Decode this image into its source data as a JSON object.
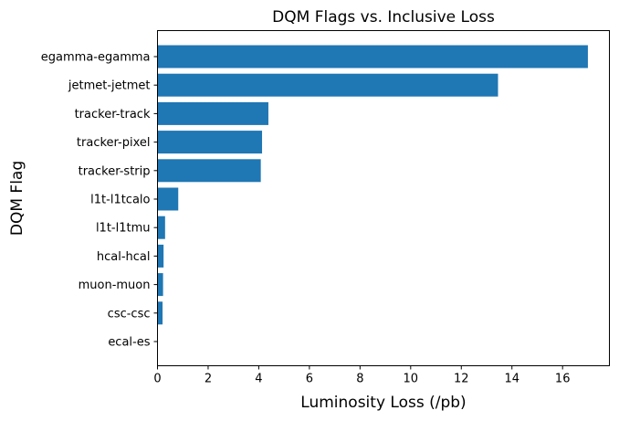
{
  "chart_data": {
    "type": "bar",
    "orientation": "horizontal",
    "title": "DQM Flags vs. Inclusive Loss",
    "xlabel": "Luminosity Loss (/pb)",
    "ylabel": "DQM Flag",
    "categories": [
      "egamma-egamma",
      "jetmet-jetmet",
      "tracker-track",
      "tracker-pixel",
      "tracker-strip",
      "l1t-l1tcalo",
      "l1t-l1tmu",
      "hcal-hcal",
      "muon-muon",
      "csc-csc",
      "ecal-es"
    ],
    "values": [
      17.0,
      13.45,
      4.38,
      4.13,
      4.08,
      0.82,
      0.3,
      0.24,
      0.22,
      0.2,
      0.0
    ],
    "xlim": [
      0,
      17.85
    ],
    "xticks": [
      0,
      2,
      4,
      6,
      8,
      10,
      12,
      14,
      16
    ],
    "xtick_labels": [
      "0",
      "2",
      "4",
      "6",
      "8",
      "10",
      "12",
      "14",
      "16"
    ],
    "bar_color": "#1f77b4",
    "grid": false,
    "legend": "none"
  }
}
